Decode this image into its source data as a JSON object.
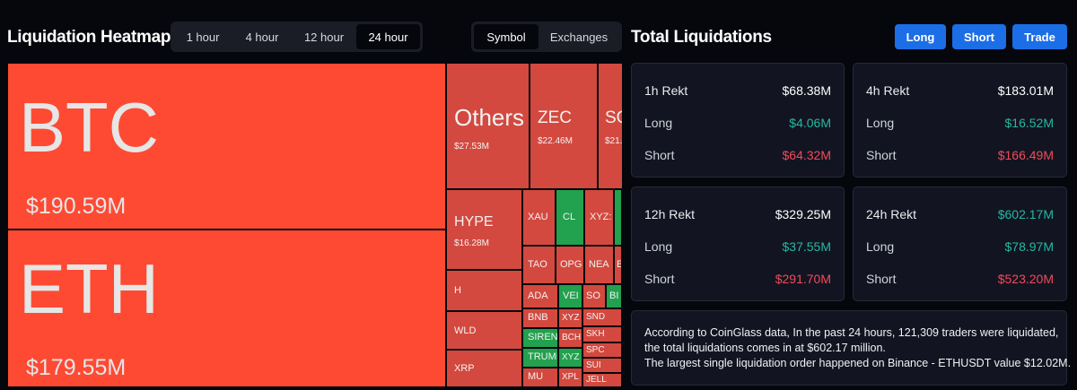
{
  "heatmap": {
    "title": "Liquidation Heatmap",
    "timeframes": [
      "1 hour",
      "4 hour",
      "12 hour",
      "24 hour"
    ],
    "active_timeframe": "24 hour",
    "views": [
      "Symbol",
      "Exchanges"
    ],
    "active_view": "Symbol",
    "tiles": {
      "btc": {
        "symbol": "BTC",
        "value": "$190.59M"
      },
      "eth": {
        "symbol": "ETH",
        "value": "$179.55M"
      },
      "others": {
        "symbol": "Others",
        "value": "$27.53M"
      },
      "zec": {
        "symbol": "ZEC",
        "value": "$22.46M"
      },
      "sol": {
        "symbol": "SO",
        "value": "$21."
      },
      "hype": {
        "symbol": "HYPE",
        "value": "$16.28M"
      },
      "h": {
        "symbol": "H"
      },
      "wld": {
        "symbol": "WLD"
      },
      "xrp": {
        "symbol": "XRP"
      },
      "xau": {
        "symbol": "XAU"
      },
      "cl": {
        "symbol": "CL"
      },
      "xyz1": {
        "symbol": "XYZ:"
      },
      "tao": {
        "symbol": "TAO"
      },
      "opg": {
        "symbol": "OPG"
      },
      "nea": {
        "symbol": "NEA"
      },
      "e": {
        "symbol": "E"
      },
      "ada": {
        "symbol": "ADA"
      },
      "vel": {
        "symbol": "VEI"
      },
      "so2": {
        "symbol": "SO"
      },
      "bi": {
        "symbol": "BI"
      },
      "bnb": {
        "symbol": "BNB"
      },
      "xyz2": {
        "symbol": "XYZ"
      },
      "snd": {
        "symbol": "SND"
      },
      "siren": {
        "symbol": "SIREN"
      },
      "bch": {
        "symbol": "BCH"
      },
      "skh": {
        "symbol": "SKH"
      },
      "trump": {
        "symbol": "TRUMI"
      },
      "xyz3": {
        "symbol": "XYZ"
      },
      "spc": {
        "symbol": "SPC"
      },
      "mu": {
        "symbol": "MU"
      },
      "xpl": {
        "symbol": "XPL"
      },
      "sui": {
        "symbol": "SUI"
      },
      "jelly": {
        "symbol": "JELL"
      }
    }
  },
  "total": {
    "title": "Total Liquidations",
    "buttons": {
      "long": "Long",
      "short": "Short",
      "trade": "Trade"
    },
    "cards": [
      {
        "label": "1h Rekt",
        "total": "$68.38M",
        "long_label": "Long",
        "long": "$4.06M",
        "short_label": "Short",
        "short": "$64.32M"
      },
      {
        "label": "4h Rekt",
        "total": "$183.01M",
        "long_label": "Long",
        "long": "$16.52M",
        "short_label": "Short",
        "short": "$166.49M"
      },
      {
        "label": "12h Rekt",
        "total": "$329.25M",
        "long_label": "Long",
        "long": "$37.55M",
        "short_label": "Short",
        "short": "$291.70M"
      },
      {
        "label": "24h Rekt",
        "total": "$602.17M",
        "long_label": "Long",
        "long": "$78.97M",
        "short_label": "Short",
        "short": "$523.20M"
      }
    ],
    "summary": {
      "line1": "According to CoinGlass data, In the past 24 hours, 121,309 traders were liquidated,",
      "line2": "the total liquidations comes in at $602.17 million.",
      "line3": "The largest single liquidation order happened on Binance - ETHUSDT value $12.02M."
    }
  },
  "colors": {
    "short_red": "#ff4a33",
    "tile_red": "#d3493f",
    "long_green": "#22a14e",
    "accent_blue": "#1b6ee6",
    "value_green": "#25b8a2",
    "value_red": "#f2495c"
  }
}
